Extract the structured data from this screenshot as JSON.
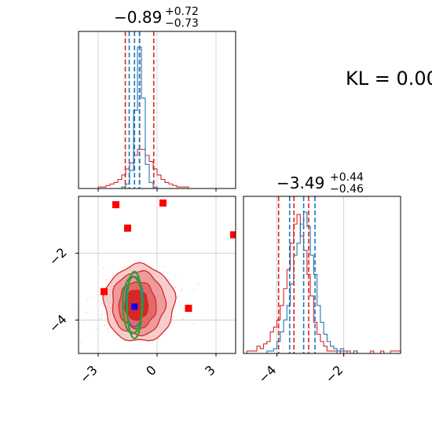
{
  "annotation": {
    "kl_text": "KL = 0.00"
  },
  "colors": {
    "red": "#d62728",
    "blue": "#1f77b4",
    "green": "#2ca02c",
    "marker_red": "#ff0000",
    "marker_blue": "#0000ff"
  },
  "titles": {
    "param1": {
      "main": "−0.89",
      "sup": "+0.72",
      "sub": "−0.73"
    },
    "param2": {
      "main": "−3.49",
      "sup": "+0.44",
      "sub": "−0.46"
    }
  },
  "chart_data": {
    "type": "corner",
    "param1_axis": {
      "xlim": [
        -4.0,
        4.0
      ],
      "ticks": [
        -3,
        0,
        3
      ],
      "tick_labels": [
        "−3",
        "0",
        "3"
      ]
    },
    "param2_axis": {
      "lim": [
        -5.0,
        -0.3
      ],
      "ticks": [
        -4,
        -2
      ],
      "tick_labels": [
        "−4",
        "−2"
      ]
    },
    "grid": true,
    "hist_param1": {
      "red_quantiles": [
        -1.62,
        -0.89,
        -0.17
      ],
      "blue_quantiles": [
        -1.42,
        -1.15,
        -0.9
      ],
      "bin_edges": [
        -3.0,
        -2.8,
        -2.6,
        -2.4,
        -2.2,
        -2.0,
        -1.8,
        -1.6,
        -1.4,
        -1.2,
        -1.0,
        -0.8,
        -0.6,
        -0.4,
        -0.2,
        0.0,
        0.2,
        0.4,
        0.6,
        0.8,
        1.0,
        1.2,
        1.4,
        1.6,
        1.8
      ],
      "red_counts": [
        1,
        1,
        2,
        3,
        4,
        6,
        9,
        13,
        17,
        22,
        26,
        26,
        22,
        18,
        13,
        9,
        6,
        4,
        3,
        2,
        1,
        1,
        1,
        0
      ],
      "blue_counts": [
        0,
        0,
        0,
        0,
        0,
        0,
        1,
        3,
        12,
        52,
        94,
        60,
        16,
        4,
        1,
        0,
        0,
        0,
        0,
        0,
        0,
        0,
        0,
        0
      ]
    },
    "hist_param2": {
      "red_quantiles": [
        -3.95,
        -3.49,
        -3.05
      ],
      "blue_quantiles": [
        -3.62,
        -3.2,
        -2.86
      ],
      "bin_edges": [
        -5.0,
        -4.9,
        -4.8,
        -4.7,
        -4.6,
        -4.5,
        -4.4,
        -4.3,
        -4.2,
        -4.1,
        -4.0,
        -3.9,
        -3.8,
        -3.7,
        -3.6,
        -3.5,
        -3.4,
        -3.3,
        -3.2,
        -3.1,
        -3.0,
        -2.9,
        -2.8,
        -2.7,
        -2.6,
        -2.5,
        -2.4,
        -2.3,
        -2.2,
        -2.1,
        -2.0,
        -1.9,
        -1.8,
        -1.7,
        -1.6,
        -1.5,
        -1.4,
        -1.3,
        -1.2,
        -1.1,
        -1.0,
        -0.9,
        -0.8,
        -0.7,
        -0.6,
        -0.5,
        -0.4,
        -0.3
      ],
      "red_counts": [
        0,
        1,
        1,
        1,
        3,
        2,
        4,
        5,
        9,
        11,
        14,
        20,
        27,
        35,
        46,
        54,
        58,
        49,
        43,
        33,
        24,
        13,
        8,
        5,
        3,
        1,
        1,
        1,
        0,
        1,
        0,
        1,
        0,
        1,
        0,
        0,
        0,
        0,
        1,
        0,
        0,
        1,
        0,
        0,
        1,
        1,
        1
      ],
      "blue_counts": [
        0,
        0,
        0,
        0,
        0,
        0,
        0,
        1,
        1,
        2,
        5,
        9,
        14,
        20,
        29,
        41,
        46,
        54,
        59,
        53,
        41,
        33,
        20,
        13,
        8,
        5,
        3,
        2,
        1,
        2,
        1,
        0,
        0,
        1,
        0,
        0,
        0,
        0,
        0,
        0,
        0,
        0,
        0,
        0,
        0,
        0,
        0
      ]
    },
    "joint": {
      "outlier_markers": [
        {
          "x": -2.1,
          "y": -0.55
        },
        {
          "x": 0.3,
          "y": -0.5
        },
        {
          "x": -1.5,
          "y": -1.25
        },
        {
          "x": 3.9,
          "y": -1.45
        },
        {
          "x": -2.7,
          "y": -3.15
        },
        {
          "x": 1.6,
          "y": -3.65
        }
      ],
      "center_marker": {
        "x": -1.15,
        "y": -3.6
      },
      "red_contours": [
        {
          "cx": -0.9,
          "cy": -3.5,
          "rx": 1.8,
          "ry": 1.15
        },
        {
          "cx": -0.95,
          "cy": -3.5,
          "rx": 1.35,
          "ry": 0.95
        },
        {
          "cx": -1.0,
          "cy": -3.55,
          "rx": 0.95,
          "ry": 0.7
        },
        {
          "cx": -1.05,
          "cy": -3.55,
          "rx": 0.6,
          "ry": 0.45
        }
      ],
      "blue_contour": {
        "cx": -1.15,
        "cy": -3.45,
        "rx": 0.45,
        "ry": 0.75
      },
      "green_contours": [
        {
          "cx": -1.15,
          "cy": -3.55,
          "rx": 0.38,
          "ry": 1.0
        },
        {
          "cx": -1.25,
          "cy": -3.55,
          "rx": 0.5,
          "ry": 0.85
        }
      ],
      "cloud_bounds": {
        "x": [
          -3.7,
          3.5
        ],
        "y": [
          -4.8,
          -2.1
        ]
      }
    }
  }
}
